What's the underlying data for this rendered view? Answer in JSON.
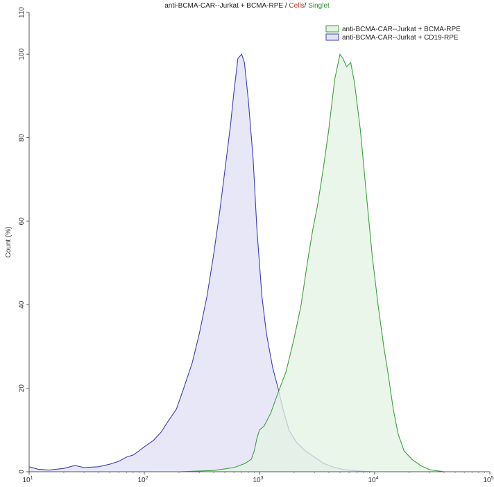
{
  "chart_data": {
    "type": "area",
    "title_parts": [
      "anti-BCMA-CAR--Jurkat + BCMA-RPE",
      " / ",
      "Cells",
      "/ ",
      "Singlet"
    ],
    "xlabel": "",
    "ylabel": "Count (%)",
    "x_scale": "log",
    "xlim": [
      10,
      100000
    ],
    "ylim": [
      0,
      110
    ],
    "x_ticks": [
      10,
      100,
      1000,
      10000,
      100000
    ],
    "x_tick_labels": [
      {
        "base": "10",
        "exp": "1"
      },
      {
        "base": "10",
        "exp": "2"
      },
      {
        "base": "10",
        "exp": "3"
      },
      {
        "base": "10",
        "exp": "4"
      },
      {
        "base": "10",
        "exp": "5"
      }
    ],
    "y_ticks": [
      0,
      20,
      40,
      60,
      80,
      100,
      110
    ],
    "y_tick_labels": [
      "0",
      "20",
      "40",
      "60",
      "80",
      "100",
      "110"
    ],
    "legend_placement": "top-right",
    "grid": false,
    "series": [
      {
        "name": "anti-BCMA-CAR--Jurkat + BCMA-RPE",
        "stroke": "#3aa03a",
        "fill": "#e3f3e3",
        "points": [
          [
            10,
            0
          ],
          [
            200,
            0
          ],
          [
            400,
            0.3
          ],
          [
            600,
            1
          ],
          [
            750,
            2
          ],
          [
            850,
            3
          ],
          [
            900,
            5
          ],
          [
            950,
            8
          ],
          [
            1000,
            10
          ],
          [
            1100,
            11
          ],
          [
            1250,
            14
          ],
          [
            1500,
            20
          ],
          [
            1700,
            24
          ],
          [
            2000,
            32
          ],
          [
            2300,
            40
          ],
          [
            2600,
            50
          ],
          [
            2900,
            58
          ],
          [
            3200,
            64
          ],
          [
            3600,
            73
          ],
          [
            4000,
            82
          ],
          [
            4500,
            94
          ],
          [
            5000,
            100
          ],
          [
            5300,
            99
          ],
          [
            5700,
            97
          ],
          [
            6200,
            98
          ],
          [
            6700,
            93
          ],
          [
            7500,
            82
          ],
          [
            8500,
            66
          ],
          [
            9500,
            52
          ],
          [
            10700,
            40
          ],
          [
            12000,
            30
          ],
          [
            13000,
            24
          ],
          [
            14500,
            15
          ],
          [
            16000,
            9
          ],
          [
            18000,
            5
          ],
          [
            21000,
            3
          ],
          [
            25000,
            1.5
          ],
          [
            30000,
            0.5
          ],
          [
            40000,
            0
          ],
          [
            100000,
            0
          ]
        ]
      },
      {
        "name": "anti-BCMA-CAR--Jurkat + CD19-RPE",
        "stroke": "#3d3db5",
        "fill": "#e4e4f7",
        "points": [
          [
            10,
            1.2
          ],
          [
            12,
            0.6
          ],
          [
            15,
            0.4
          ],
          [
            20,
            0.8
          ],
          [
            25,
            1.5
          ],
          [
            30,
            1.0
          ],
          [
            40,
            1.2
          ],
          [
            50,
            1.8
          ],
          [
            60,
            2.5
          ],
          [
            70,
            3.5
          ],
          [
            80,
            4.0
          ],
          [
            90,
            5.0
          ],
          [
            100,
            6.0
          ],
          [
            120,
            7.5
          ],
          [
            140,
            9.5
          ],
          [
            160,
            12
          ],
          [
            190,
            15
          ],
          [
            220,
            20
          ],
          [
            260,
            26
          ],
          [
            300,
            33
          ],
          [
            350,
            42
          ],
          [
            400,
            52
          ],
          [
            450,
            62
          ],
          [
            500,
            72
          ],
          [
            560,
            83
          ],
          [
            600,
            91
          ],
          [
            650,
            99
          ],
          [
            700,
            100
          ],
          [
            740,
            98
          ],
          [
            800,
            89
          ],
          [
            880,
            75
          ],
          [
            950,
            58
          ],
          [
            1050,
            42
          ],
          [
            1150,
            33
          ],
          [
            1300,
            25
          ],
          [
            1450,
            20
          ],
          [
            1600,
            15
          ],
          [
            1800,
            10
          ],
          [
            2100,
            7
          ],
          [
            2500,
            5
          ],
          [
            3000,
            3.5
          ],
          [
            3600,
            2
          ],
          [
            4500,
            1
          ],
          [
            5500,
            0.5
          ],
          [
            7000,
            0.2
          ],
          [
            10000,
            0
          ],
          [
            100000,
            0
          ]
        ]
      }
    ]
  }
}
